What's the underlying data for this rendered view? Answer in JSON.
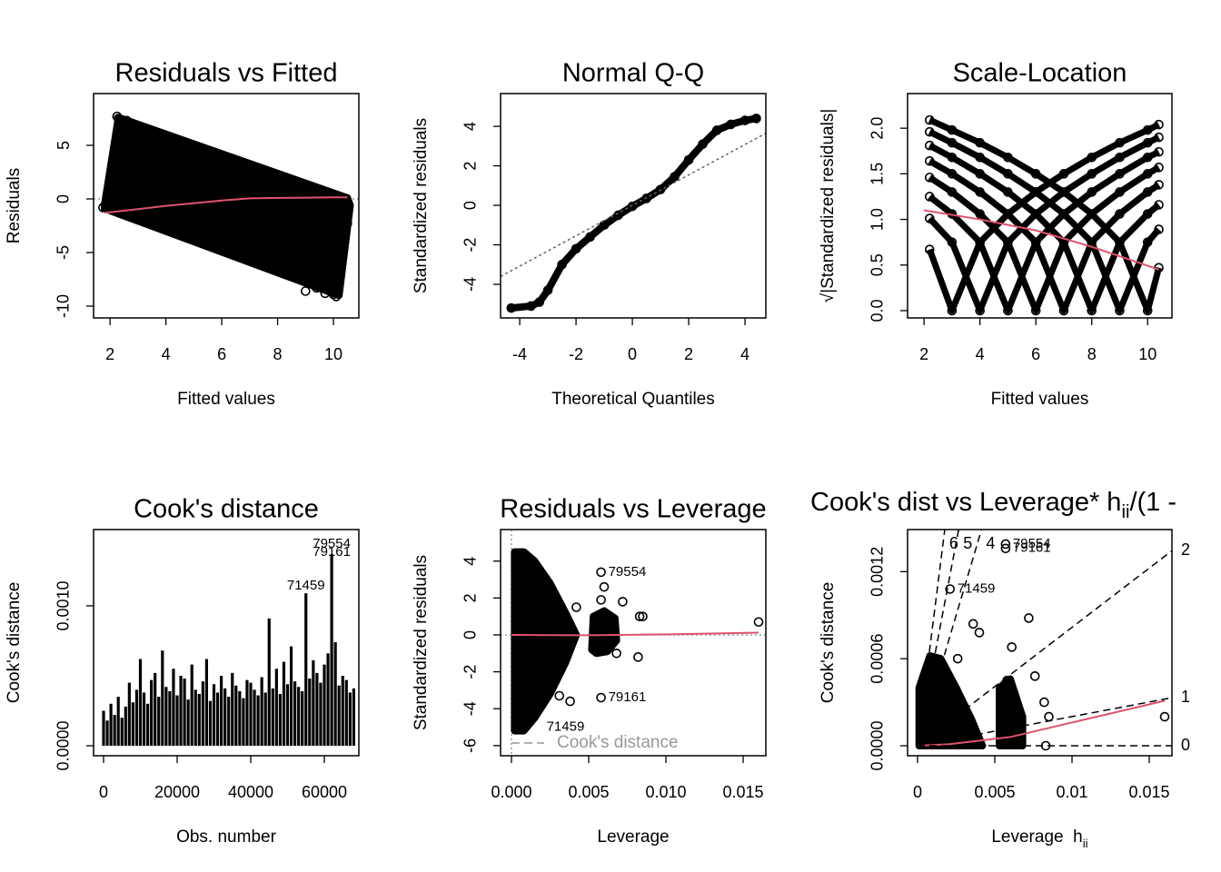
{
  "chart_data": [
    {
      "type": "scatter",
      "title": "Residuals vs Fitted",
      "xlabel": "Fitted values",
      "ylabel": "Residuals",
      "xlim": [
        1.41,
        10.91
      ],
      "ylim": [
        -11.1,
        9.83
      ],
      "xticks": [
        2,
        4,
        6,
        8,
        10
      ],
      "yticks": [
        -10,
        -5,
        0,
        5
      ],
      "clouds": [
        {
          "x": [
            1.8,
            2.3,
            10.5,
            10.6,
            10.2,
            1.8
          ],
          "y": [
            -0.6,
            7.6,
            0.1,
            -0.6,
            -9.0,
            -0.9
          ]
        }
      ],
      "points": {
        "x": [
          1.75,
          1.9,
          2.2,
          2.25,
          2.3,
          2.5,
          2.6,
          2.8,
          3.0,
          2.4,
          2.7,
          3.3,
          3.6,
          9.0,
          9.4,
          9.7,
          10.0,
          10.1,
          10.3,
          10.4,
          10.5,
          10.55,
          10.2,
          9.9,
          8.8,
          9.6
        ],
        "y": [
          -0.8,
          -0.7,
          -0.1,
          7.7,
          7.5,
          5.5,
          7.3,
          7.0,
          6.8,
          1.5,
          4.0,
          6.2,
          5.8,
          -8.6,
          -8.3,
          -8.8,
          -8.9,
          -9.1,
          -5.3,
          -3.5,
          -2.3,
          -0.6,
          -7.0,
          -5.8,
          -7.5,
          -6.5
        ]
      },
      "smooth": {
        "color": "#DF536B",
        "x": [
          1.8,
          3,
          4,
          5,
          6,
          7,
          8,
          9,
          10,
          10.5
        ],
        "y": [
          -1.3,
          -0.95,
          -0.65,
          -0.4,
          -0.15,
          0.05,
          0.1,
          0.12,
          0.15,
          0.15
        ]
      },
      "hline": 0
    },
    {
      "type": "qq",
      "title": "Normal Q-Q",
      "xlabel": "Theoretical Quantiles",
      "ylabel": "Standardized residuals",
      "xlim": [
        -4.68,
        4.74
      ],
      "ylim": [
        -5.7,
        5.66
      ],
      "xticks": [
        -4,
        -2,
        0,
        2,
        4
      ],
      "yticks": [
        -4,
        -2,
        0,
        2,
        4
      ],
      "points": {
        "x": [
          -4.3,
          -3.6,
          -3.3,
          -3,
          -2.5,
          -2,
          -1.5,
          -1,
          -0.5,
          0,
          0.5,
          1,
          1.5,
          2,
          2.5,
          3,
          3.5,
          4,
          4.4
        ],
        "y": [
          -5.2,
          -5.1,
          -4.9,
          -4.3,
          -3,
          -2.2,
          -1.6,
          -1,
          -0.5,
          -0.05,
          0.35,
          0.8,
          1.45,
          2.3,
          3.1,
          3.8,
          4.1,
          4.3,
          4.4
        ]
      },
      "qqline": {
        "intercept": 0,
        "slope": 0.77
      }
    },
    {
      "type": "lines",
      "title": "Scale-Location",
      "xlabel": "Fitted values",
      "ylabel": "√|Standardized residuals|",
      "xlim": [
        1.41,
        10.87
      ],
      "ylim": [
        -0.08,
        2.38
      ],
      "xticks": [
        2,
        4,
        6,
        8,
        10
      ],
      "yticks": [
        {
          "value": 0,
          "label": "0.0"
        },
        0.5,
        {
          "value": 1,
          "label": "1.0"
        },
        1.5,
        {
          "value": 2,
          "label": "2.0"
        }
      ],
      "x": [
        2.2,
        3,
        4,
        5,
        6,
        7,
        8,
        9,
        10,
        10.4
      ],
      "series": [
        {
          "values": [
            0.67,
            0,
            0.75,
            1.06,
            1.3,
            1.5,
            1.68,
            1.84,
            1.98,
            2.04
          ]
        },
        {
          "values": [
            1.01,
            0.75,
            0,
            0.75,
            1.06,
            1.3,
            1.5,
            1.68,
            1.84,
            1.9
          ]
        },
        {
          "values": [
            1.25,
            1.06,
            0.75,
            0,
            0.75,
            1.06,
            1.3,
            1.5,
            1.68,
            1.74
          ]
        },
        {
          "values": [
            1.46,
            1.3,
            1.06,
            0.75,
            0,
            0.75,
            1.06,
            1.3,
            1.5,
            1.57
          ]
        },
        {
          "values": [
            1.64,
            1.5,
            1.3,
            1.06,
            0.75,
            0,
            0.75,
            1.06,
            1.3,
            1.38
          ]
        },
        {
          "values": [
            1.81,
            1.68,
            1.5,
            1.3,
            1.06,
            0.75,
            0,
            0.75,
            1.06,
            1.16
          ]
        },
        {
          "values": [
            1.96,
            1.84,
            1.68,
            1.5,
            1.3,
            1.06,
            0.75,
            0,
            0.75,
            0.89
          ]
        },
        {
          "values": [
            2.09,
            1.98,
            1.84,
            1.68,
            1.5,
            1.3,
            1.06,
            0.75,
            0,
            0.47
          ]
        }
      ],
      "smooth": {
        "color": "#DF536B",
        "x": [
          2,
          4,
          6,
          8,
          10.4
        ],
        "y": [
          1.1,
          1.0,
          0.88,
          0.7,
          0.45
        ]
      }
    },
    {
      "type": "needle",
      "title": "Cook's distance",
      "xlabel": "Obs. number",
      "ylabel": "Cook's distance",
      "xlim": [
        -2716,
        69383
      ],
      "ylim": [
        -7.14e-05,
        0.001545
      ],
      "xticks": [
        0,
        20000,
        40000,
        60000
      ],
      "yticks": [
        {
          "value": 0,
          "label": "0.0000"
        },
        {
          "value": 0.001,
          "label": "0.0010"
        }
      ],
      "x": [
        0,
        1000,
        2000,
        3000,
        4000,
        5000,
        6000,
        7000,
        8000,
        9000,
        10000,
        11000,
        12000,
        13000,
        14000,
        15000,
        16000,
        17000,
        18000,
        19000,
        20000,
        21000,
        22000,
        23000,
        24000,
        25000,
        26000,
        27000,
        28000,
        29000,
        30000,
        31000,
        32000,
        33000,
        34000,
        35000,
        36000,
        37000,
        38000,
        39000,
        40000,
        41000,
        42000,
        43000,
        44000,
        45000,
        46000,
        47000,
        48000,
        49000,
        50000,
        51000,
        52000,
        53000,
        54000,
        55000,
        56000,
        57000,
        58000,
        59000,
        60000,
        61000,
        62000,
        63000,
        64000,
        65000,
        66000,
        67000,
        68000
      ],
      "values": [
        0.00025,
        0.00018,
        0.0003,
        0.00022,
        0.00035,
        0.0002,
        0.00028,
        0.00045,
        0.00031,
        0.0004,
        0.00062,
        0.00038,
        0.0003,
        0.00047,
        0.00052,
        0.00035,
        0.00068,
        0.00042,
        0.00039,
        0.00055,
        0.00036,
        0.0005,
        0.00048,
        0.00033,
        0.00058,
        0.0004,
        0.00037,
        0.00046,
        0.00062,
        0.00032,
        0.00044,
        0.00038,
        0.0005,
        0.00041,
        0.00035,
        0.00052,
        0.00043,
        0.00039,
        0.00034,
        0.00047,
        0.00045,
        0.0004,
        0.00036,
        0.00049,
        0.00038,
        0.00091,
        0.00041,
        0.00055,
        0.00037,
        0.0006,
        0.00044,
        0.00071,
        0.00046,
        0.00042,
        0.00039,
        0.00109,
        0.00048,
        0.00061,
        0.00052,
        0.00045,
        0.00058,
        0.00066,
        0.00137,
        0.00074,
        0.00043,
        0.0005,
        0.00047,
        0.00038,
        0.00041
      ],
      "labels": [
        {
          "text": "79554",
          "x": 62000,
          "y": 0.00139
        },
        {
          "text": "79161",
          "x": 62000,
          "y": 0.00133
        },
        {
          "text": "71459",
          "x": 55000,
          "y": 0.00109
        }
      ]
    },
    {
      "type": "scatter",
      "title": "Residuals vs Leverage",
      "xlabel": "Leverage",
      "ylabel": "Standardized residuals",
      "xlim": [
        -0.000706,
        0.01647
      ],
      "ylim": [
        -6.55,
        5.71
      ],
      "xticks": [
        {
          "value": 0,
          "label": "0.000"
        },
        0.005,
        {
          "value": 0.01,
          "label": "0.010"
        },
        0.015
      ],
      "yticks": [
        -6,
        -4,
        -2,
        0,
        2,
        4
      ],
      "clouds": [
        {
          "x": [
            0.0002,
            0.0002,
            0.0008,
            0.0015,
            0.0025,
            0.0035,
            0.0042,
            0.0035,
            0.0025,
            0.0015,
            0.0008
          ],
          "y": [
            -5.2,
            4.5,
            4.5,
            4.0,
            2.8,
            1.2,
            0,
            -1.5,
            -3.2,
            -4.5,
            -5.2
          ]
        },
        {
          "x": [
            0.0052,
            0.0053,
            0.006,
            0.0067,
            0.0068,
            0.0062,
            0.0055
          ],
          "y": [
            -0.8,
            1.0,
            1.3,
            0.9,
            -0.3,
            -0.9,
            -1.0
          ]
        }
      ],
      "points": {
        "x": [
          0.0058,
          0.0072,
          0.0085,
          0.0083,
          0.0082,
          0.016,
          0.0058,
          0.0058,
          0.0038,
          0.0042,
          0.0031,
          0.0026,
          0.0068,
          0.006
        ],
        "y": [
          3.4,
          1.8,
          1.0,
          1.0,
          -1.2,
          0.7,
          -3.4,
          1.9,
          -3.6,
          1.5,
          -3.3,
          2.3,
          -1.0,
          2.6
        ]
      },
      "smooth": {
        "color": "#DF536B",
        "x": [
          0,
          0.005,
          0.01,
          0.016
        ],
        "y": [
          0,
          -0.02,
          0.03,
          0.12
        ]
      },
      "hline": 0,
      "vline": 0,
      "labels": [
        {
          "text": "79554",
          "x": 0.0058,
          "y": 3.4
        },
        {
          "text": "79161",
          "x": 0.0058,
          "y": -3.4
        },
        {
          "text": "71459",
          "x": 0.0018,
          "y": -5.0
        }
      ],
      "legend": "Cook's distance",
      "legend_loc": "bottom left"
    },
    {
      "type": "scatter",
      "title_parts": [
        "Cook's dist vs Leverage* h",
        "ii",
        "/(1 -"
      ],
      "xlabel_parts": [
        "Leverage  h",
        "ii"
      ],
      "ylabel": "Cook's distance",
      "xlim": [
        -0.000647,
        0.01647
      ],
      "ylim": [
        -6.88e-05,
        0.00149
      ],
      "xticks": [
        0,
        0.005,
        0.01,
        0.015
      ],
      "yticks": [
        {
          "value": 0,
          "label": "0.0000"
        },
        0.0006,
        0.0012
      ],
      "clouds": [
        {
          "x": [
            0.0001,
            0.0001,
            0.0008,
            0.0015,
            0.0025,
            0.0035,
            0.0042
          ],
          "y": [
            0,
            0.0004,
            0.00062,
            0.0006,
            0.0004,
            0.00018,
            0
          ]
        },
        {
          "x": [
            0.0053,
            0.0053,
            0.006,
            0.0068,
            0.0068
          ],
          "y": [
            0,
            0.0004,
            0.00046,
            0.0002,
            0
          ]
        }
      ],
      "points": {
        "x": [
          0.0057,
          0.0057,
          0.0021,
          0.0026,
          0.0036,
          0.004,
          0.0072,
          0.0082,
          0.0085,
          0.016,
          0.0083,
          0.0061,
          0.0076,
          0.0058
        ],
        "y": [
          0.00139,
          0.00136,
          0.00108,
          0.0006,
          0.00084,
          0.00078,
          0.00088,
          0.0003,
          0.0002,
          0.0002,
          0,
          0.00068,
          0.00048,
          0.00045
        ]
      },
      "smooth": {
        "color": "#DF536B",
        "x": [
          0,
          0.002,
          0.006,
          0.016
        ],
        "y": [
          0,
          1e-05,
          6e-05,
          0.00031
        ]
      },
      "contours": [
        {
          "label": "6",
          "slope": 0.846
        },
        {
          "label": "5",
          "slope": 0.56
        },
        {
          "label": "4",
          "slope": 0.36
        },
        {
          "label": "2",
          "slope": 0.0816
        },
        {
          "label": "1",
          "slope": 0.0201
        },
        {
          "label": "0",
          "slope": 0
        }
      ],
      "labels": [
        {
          "text": "79554",
          "x": 0.0057,
          "y": 0.00139
        },
        {
          "text": "79161",
          "x": 0.0057,
          "y": 0.00136
        },
        {
          "text": "71459",
          "x": 0.0021,
          "y": 0.00108
        }
      ]
    }
  ]
}
